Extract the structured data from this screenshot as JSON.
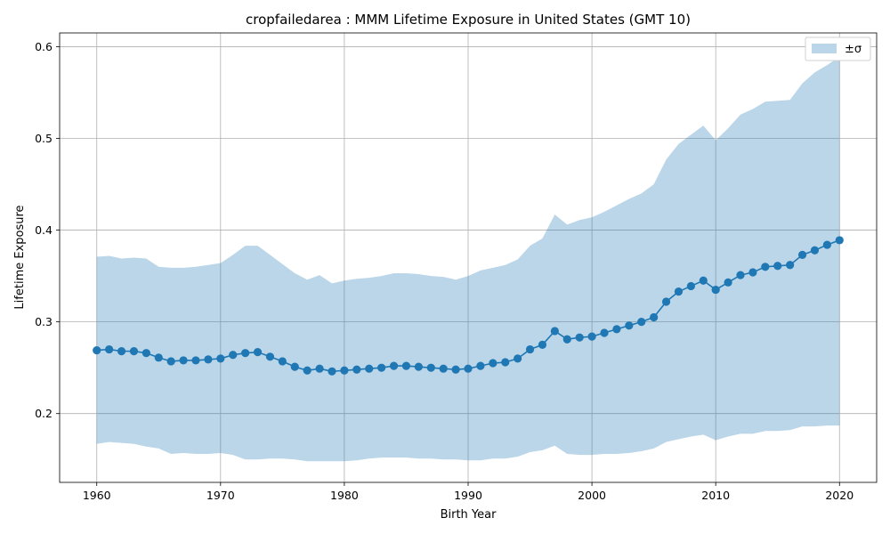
{
  "chart_data": {
    "type": "line",
    "title": "cropfailedarea : MMM Lifetime Exposure in United States (GMT 10)",
    "xlabel": "Birth Year",
    "ylabel": "Lifetime Exposure",
    "xlim": [
      1957,
      2023
    ],
    "ylim": [
      0.125,
      0.615
    ],
    "xticks": [
      1960,
      1970,
      1980,
      1990,
      2000,
      2010,
      2020
    ],
    "yticks": [
      0.2,
      0.3,
      0.4,
      0.5,
      0.6
    ],
    "grid": true,
    "legend": {
      "placement": "top-right",
      "entries": [
        "±σ"
      ]
    },
    "colors": {
      "line": "#1f77b4",
      "band": "#1f77b4"
    },
    "x": [
      1960,
      1961,
      1962,
      1963,
      1964,
      1965,
      1966,
      1967,
      1968,
      1969,
      1970,
      1971,
      1972,
      1973,
      1974,
      1975,
      1976,
      1977,
      1978,
      1979,
      1980,
      1981,
      1982,
      1983,
      1984,
      1985,
      1986,
      1987,
      1988,
      1989,
      1990,
      1991,
      1992,
      1993,
      1994,
      1995,
      1996,
      1997,
      1998,
      1999,
      2000,
      2001,
      2002,
      2003,
      2004,
      2005,
      2006,
      2007,
      2008,
      2009,
      2010,
      2011,
      2012,
      2013,
      2014,
      2015,
      2016,
      2017,
      2018,
      2019,
      2020
    ],
    "series": [
      {
        "name": "mean",
        "values": [
          0.269,
          0.27,
          0.268,
          0.268,
          0.266,
          0.261,
          0.257,
          0.258,
          0.258,
          0.259,
          0.26,
          0.264,
          0.266,
          0.267,
          0.262,
          0.257,
          0.251,
          0.247,
          0.249,
          0.246,
          0.247,
          0.248,
          0.249,
          0.25,
          0.252,
          0.252,
          0.251,
          0.25,
          0.249,
          0.248,
          0.249,
          0.252,
          0.255,
          0.256,
          0.26,
          0.27,
          0.275,
          0.29,
          0.281,
          0.283,
          0.284,
          0.288,
          0.292,
          0.296,
          0.3,
          0.305,
          0.322,
          0.333,
          0.339,
          0.345,
          0.335,
          0.343,
          0.351,
          0.354,
          0.36,
          0.361,
          0.362,
          0.373,
          0.378,
          0.384,
          0.389
        ]
      }
    ],
    "band": {
      "name": "±σ",
      "upper": [
        0.371,
        0.372,
        0.369,
        0.37,
        0.369,
        0.36,
        0.359,
        0.359,
        0.36,
        0.362,
        0.364,
        0.373,
        0.383,
        0.383,
        0.373,
        0.363,
        0.353,
        0.346,
        0.351,
        0.342,
        0.345,
        0.347,
        0.348,
        0.35,
        0.353,
        0.353,
        0.352,
        0.35,
        0.349,
        0.346,
        0.35,
        0.356,
        0.359,
        0.362,
        0.368,
        0.383,
        0.391,
        0.417,
        0.406,
        0.411,
        0.414,
        0.42,
        0.427,
        0.434,
        0.44,
        0.45,
        0.477,
        0.494,
        0.504,
        0.514,
        0.498,
        0.511,
        0.526,
        0.532,
        0.54,
        0.541,
        0.542,
        0.56,
        0.572,
        0.58,
        0.589
      ],
      "lower": [
        0.167,
        0.169,
        0.168,
        0.167,
        0.164,
        0.162,
        0.156,
        0.157,
        0.156,
        0.156,
        0.157,
        0.155,
        0.15,
        0.15,
        0.151,
        0.151,
        0.15,
        0.148,
        0.148,
        0.148,
        0.148,
        0.149,
        0.151,
        0.152,
        0.152,
        0.152,
        0.151,
        0.151,
        0.15,
        0.15,
        0.149,
        0.149,
        0.151,
        0.151,
        0.153,
        0.158,
        0.16,
        0.165,
        0.156,
        0.155,
        0.155,
        0.156,
        0.156,
        0.157,
        0.159,
        0.162,
        0.169,
        0.172,
        0.175,
        0.177,
        0.171,
        0.175,
        0.178,
        0.178,
        0.181,
        0.181,
        0.182,
        0.186,
        0.186,
        0.187,
        0.187
      ]
    }
  }
}
